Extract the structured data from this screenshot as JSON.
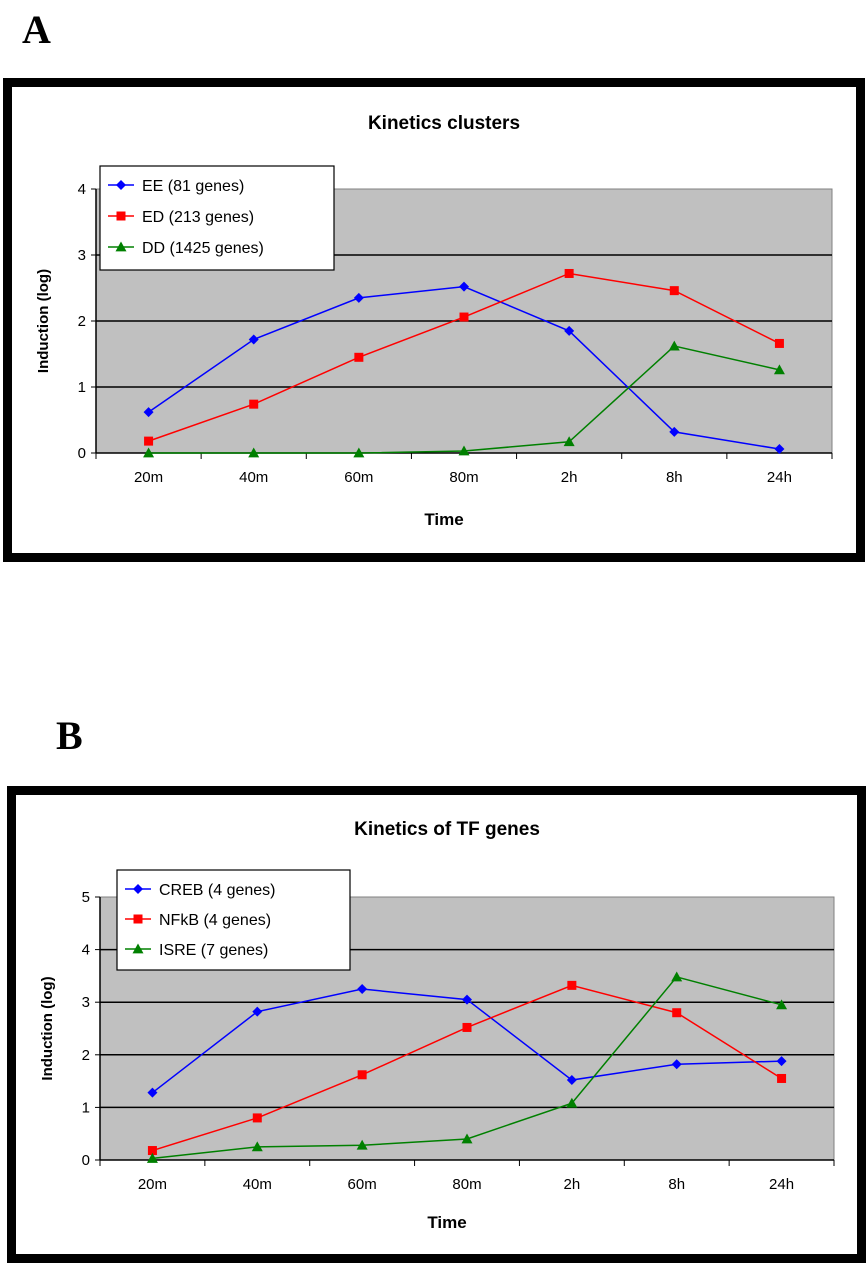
{
  "panels": {
    "a": {
      "letter": "A"
    },
    "b": {
      "letter": "B"
    }
  },
  "chart_data": [
    {
      "type": "line",
      "title": "Kinetics clusters",
      "xlabel": "Time",
      "ylabel": "Induction (log)",
      "categories": [
        "20m",
        "40m",
        "60m",
        "80m",
        "2h",
        "8h",
        "24h"
      ],
      "ylim": [
        0,
        4
      ],
      "yticks": [
        0,
        1,
        2,
        3,
        4
      ],
      "grid": true,
      "legend_position": "top-left",
      "series": [
        {
          "name": "EE (81 genes)",
          "color": "#0000ff",
          "marker": "diamond",
          "values": [
            0.62,
            1.72,
            2.35,
            2.52,
            1.85,
            0.32,
            0.06
          ]
        },
        {
          "name": "ED (213 genes)",
          "color": "#ff0000",
          "marker": "square",
          "values": [
            0.18,
            0.74,
            1.45,
            2.06,
            2.72,
            2.46,
            1.66
          ]
        },
        {
          "name": "DD (1425 genes)",
          "color": "#008000",
          "marker": "triangle",
          "values": [
            0.0,
            0.0,
            0.0,
            0.03,
            0.17,
            1.62,
            1.26
          ]
        }
      ]
    },
    {
      "type": "line",
      "title": "Kinetics of TF genes",
      "xlabel": "Time",
      "ylabel": "Induction (log)",
      "categories": [
        "20m",
        "40m",
        "60m",
        "80m",
        "2h",
        "8h",
        "24h"
      ],
      "ylim": [
        0,
        5
      ],
      "yticks": [
        0,
        1,
        2,
        3,
        4,
        5
      ],
      "grid": true,
      "legend_position": "top-left",
      "series": [
        {
          "name": "CREB (4 genes)",
          "color": "#0000ff",
          "marker": "diamond",
          "values": [
            1.28,
            2.82,
            3.25,
            3.05,
            1.52,
            1.82,
            1.88
          ]
        },
        {
          "name": "NFkB (4 genes)",
          "color": "#ff0000",
          "marker": "square",
          "values": [
            0.18,
            0.8,
            1.62,
            2.52,
            3.32,
            2.8,
            1.55
          ]
        },
        {
          "name": "ISRE (7 genes)",
          "color": "#008000",
          "marker": "triangle",
          "values": [
            0.03,
            0.25,
            0.28,
            0.4,
            1.08,
            3.48,
            2.95
          ]
        }
      ]
    }
  ]
}
